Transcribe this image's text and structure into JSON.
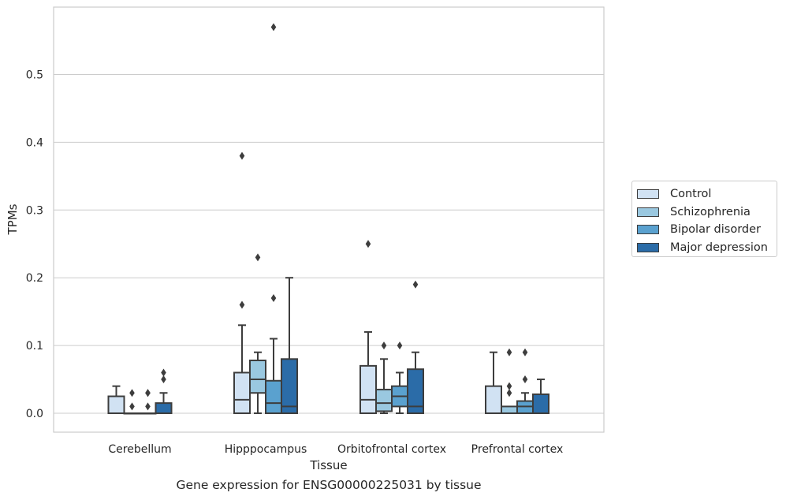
{
  "chart_data": {
    "type": "box",
    "xlabel": "Tissue",
    "ylabel": "TPMs",
    "caption": "Gene expression for ENSG00000225031 by tissue",
    "categories": [
      "Cerebellum",
      "Hipppocampus",
      "Orbitofrontal cortex",
      "Prefrontal cortex"
    ],
    "ylim": [
      -0.028,
      0.6
    ],
    "yticks": [
      "0.0",
      "0.1",
      "0.2",
      "0.3",
      "0.4",
      "0.5"
    ],
    "grid": "horizontal",
    "legend_position": "right",
    "series": [
      {
        "name": "Control",
        "color": "#d1e2f3",
        "boxes": [
          {
            "q1": 0.0,
            "median": 0.0,
            "q3": 0.025,
            "wlow": 0.0,
            "whigh": 0.04,
            "outliers": []
          },
          {
            "q1": 0.0,
            "median": 0.02,
            "q3": 0.06,
            "wlow": 0.0,
            "whigh": 0.13,
            "outliers": [
              0.16,
              0.38
            ]
          },
          {
            "q1": 0.0,
            "median": 0.02,
            "q3": 0.07,
            "wlow": 0.0,
            "whigh": 0.12,
            "outliers": [
              0.25
            ]
          },
          {
            "q1": 0.0,
            "median": 0.0,
            "q3": 0.04,
            "wlow": 0.0,
            "whigh": 0.09,
            "outliers": []
          }
        ]
      },
      {
        "name": "Schizophrenia",
        "color": "#9ac8e0",
        "boxes": [
          {
            "q1": 0.0,
            "median": 0.0,
            "q3": 0.0,
            "wlow": 0.0,
            "whigh": 0.0,
            "outliers": [
              0.01,
              0.03
            ]
          },
          {
            "q1": 0.03,
            "median": 0.05,
            "q3": 0.078,
            "wlow": 0.0,
            "whigh": 0.09,
            "outliers": [
              0.23
            ]
          },
          {
            "q1": 0.003,
            "median": 0.015,
            "q3": 0.035,
            "wlow": 0.0,
            "whigh": 0.08,
            "outliers": [
              0.1
            ]
          },
          {
            "q1": 0.0,
            "median": 0.0,
            "q3": 0.01,
            "wlow": 0.0,
            "whigh": 0.01,
            "outliers": [
              0.03,
              0.04,
              0.09
            ]
          }
        ]
      },
      {
        "name": "Bipolar disorder",
        "color": "#5aa1cf",
        "boxes": [
          {
            "q1": 0.0,
            "median": 0.0,
            "q3": 0.0,
            "wlow": 0.0,
            "whigh": 0.0,
            "outliers": [
              0.01,
              0.03,
              0.03
            ]
          },
          {
            "q1": 0.0,
            "median": 0.015,
            "q3": 0.048,
            "wlow": 0.0,
            "whigh": 0.11,
            "outliers": [
              0.17,
              0.57
            ]
          },
          {
            "q1": 0.01,
            "median": 0.025,
            "q3": 0.04,
            "wlow": 0.0,
            "whigh": 0.06,
            "outliers": [
              0.1
            ]
          },
          {
            "q1": 0.0,
            "median": 0.01,
            "q3": 0.018,
            "wlow": 0.0,
            "whigh": 0.03,
            "outliers": [
              0.05,
              0.09
            ]
          }
        ]
      },
      {
        "name": "Major depression",
        "color": "#2b6ca8",
        "boxes": [
          {
            "q1": 0.0,
            "median": 0.0,
            "q3": 0.015,
            "wlow": 0.0,
            "whigh": 0.03,
            "outliers": [
              0.05,
              0.06
            ]
          },
          {
            "q1": 0.0,
            "median": 0.01,
            "q3": 0.08,
            "wlow": 0.0,
            "whigh": 0.2,
            "outliers": []
          },
          {
            "q1": 0.0,
            "median": 0.01,
            "q3": 0.065,
            "wlow": 0.0,
            "whigh": 0.09,
            "outliers": [
              0.19
            ]
          },
          {
            "q1": 0.0,
            "median": 0.0,
            "q3": 0.028,
            "wlow": 0.0,
            "whigh": 0.05,
            "outliers": []
          }
        ]
      }
    ]
  }
}
